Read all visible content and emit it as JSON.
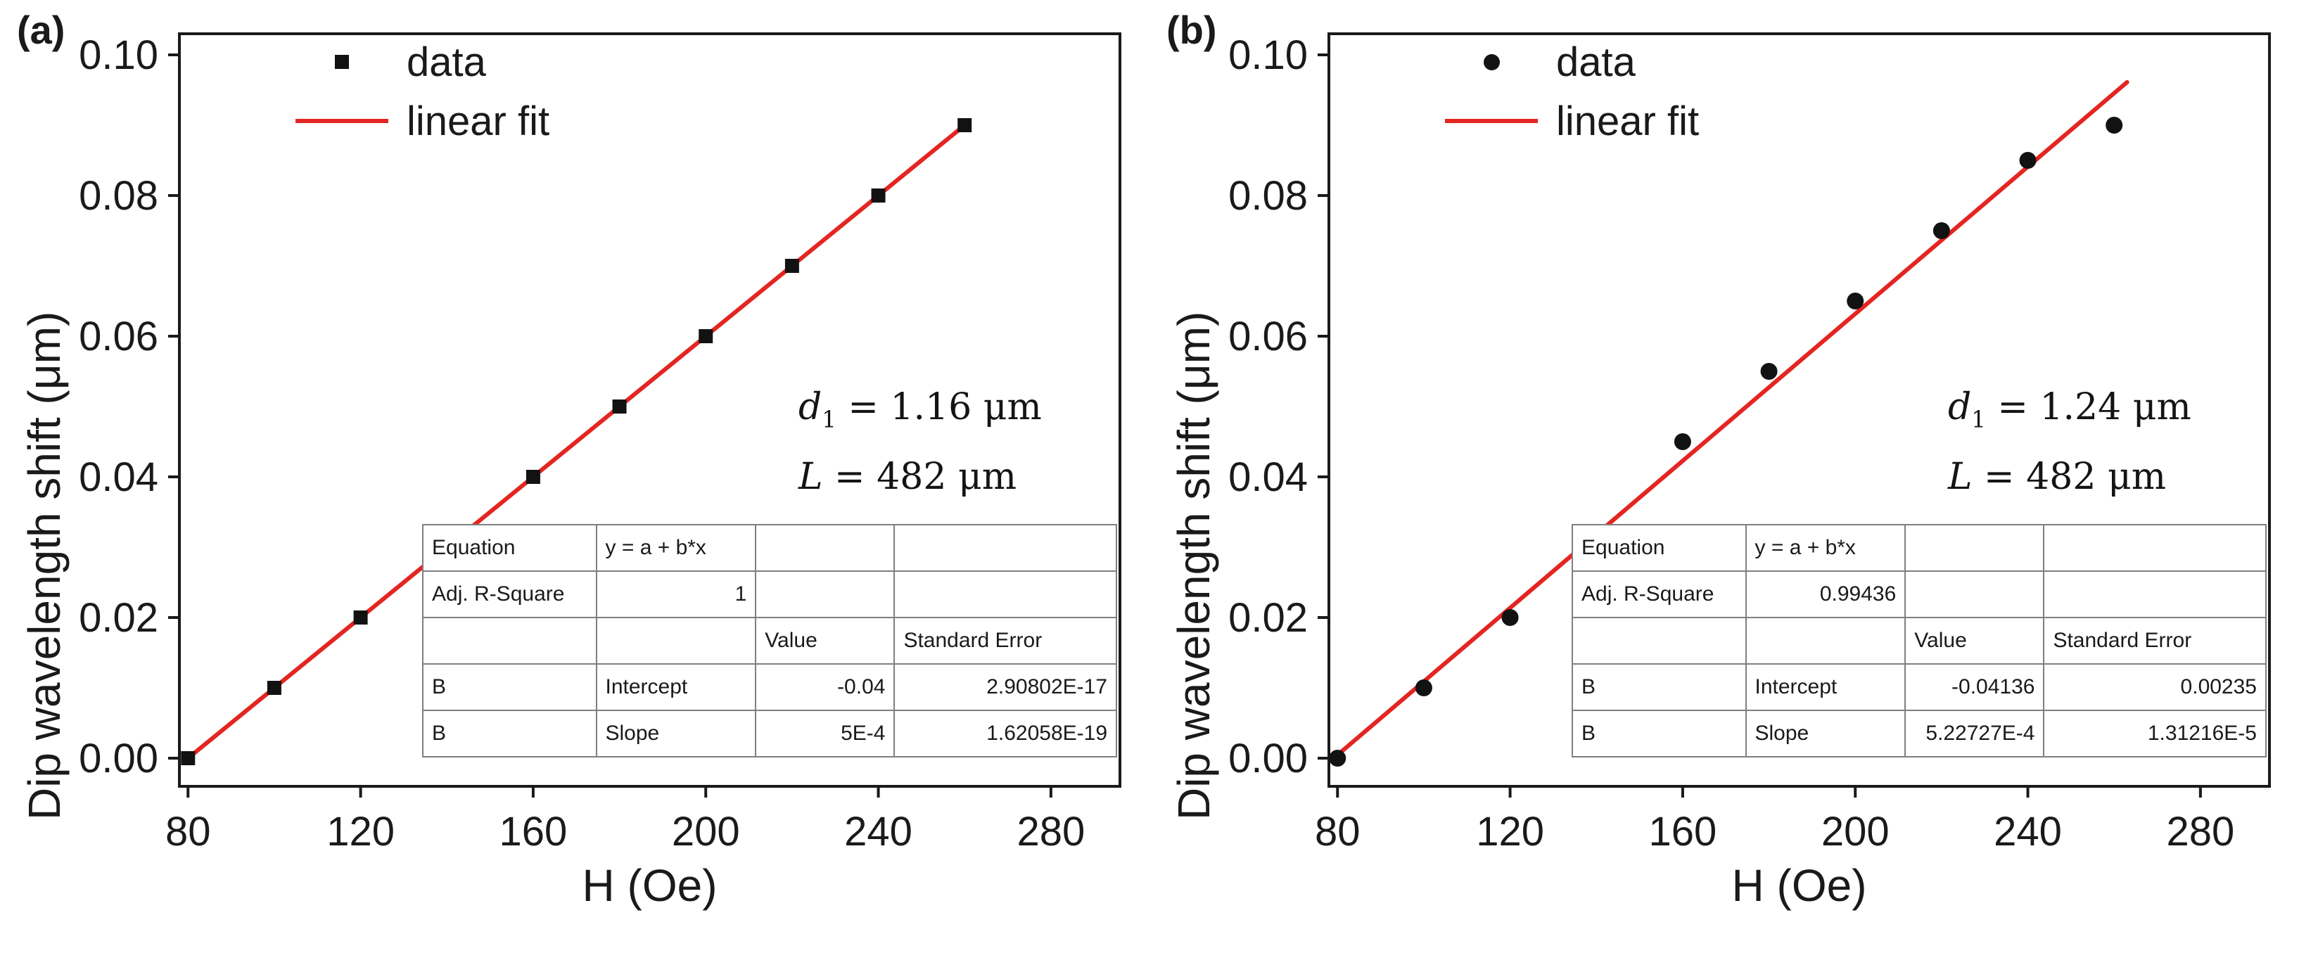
{
  "colors": {
    "fit_line": "#e42521",
    "marker": "#121212",
    "axis": "#1a1a1a",
    "table_border": "#7f7f7f"
  },
  "chart_data": [
    {
      "type": "scatter",
      "panel_label": "(a)",
      "xlabel": "H (Oe)",
      "ylabel": "Dip wavelength shift (μm)",
      "xlim": [
        78,
        296
      ],
      "ylim": [
        -0.004,
        0.103
      ],
      "xticks": [
        80,
        120,
        160,
        200,
        240,
        280
      ],
      "xtick_labels": [
        "80",
        "120",
        "160",
        "200",
        "240",
        "280"
      ],
      "yticks": [
        0.0,
        0.02,
        0.04,
        0.06,
        0.08,
        0.1
      ],
      "ytick_labels": [
        "0.00",
        "0.02",
        "0.04",
        "0.06",
        "0.08",
        "0.10"
      ],
      "marker": "square",
      "points": {
        "x": [
          80,
          100,
          120,
          140,
          160,
          180,
          200,
          220,
          240,
          260
        ],
        "y": [
          0.0,
          0.01,
          0.02,
          0.03,
          0.04,
          0.05,
          0.06,
          0.07,
          0.08,
          0.09
        ]
      },
      "fit": {
        "intercept": -0.04,
        "slope": 0.0005,
        "x_range": [
          80,
          260
        ]
      },
      "legend": {
        "data_label": "data",
        "fit_label": "linear fit"
      },
      "annotation": {
        "d": {
          "sym": "d",
          "sub": "1",
          "rest": " = 1.16 μm"
        },
        "L": {
          "sym": "L",
          "rest": " = 482 μm"
        }
      },
      "stats": {
        "rows": [
          [
            "Equation",
            "y = a + b*x",
            "",
            ""
          ],
          [
            "Adj. R-Square",
            "1",
            "",
            ""
          ],
          [
            "",
            "",
            "Value",
            "Standard Error"
          ],
          [
            "B",
            "Intercept",
            "-0.04",
            "2.90802E-17"
          ],
          [
            "B",
            "Slope",
            "5E-4",
            "1.62058E-19"
          ]
        ]
      }
    },
    {
      "type": "scatter",
      "panel_label": "(b)",
      "xlabel": "H (Oe)",
      "ylabel": "Dip wavelength shift (μm)",
      "xlim": [
        78,
        296
      ],
      "ylim": [
        -0.004,
        0.103
      ],
      "xticks": [
        80,
        120,
        160,
        200,
        240,
        280
      ],
      "xtick_labels": [
        "80",
        "120",
        "160",
        "200",
        "240",
        "280"
      ],
      "yticks": [
        0.0,
        0.02,
        0.04,
        0.06,
        0.08,
        0.1
      ],
      "ytick_labels": [
        "0.00",
        "0.02",
        "0.04",
        "0.06",
        "0.08",
        "0.10"
      ],
      "marker": "circle",
      "points": {
        "x": [
          80,
          100,
          120,
          140,
          160,
          180,
          200,
          220,
          240,
          260
        ],
        "y": [
          0.0,
          0.01,
          0.02,
          0.03,
          0.045,
          0.055,
          0.065,
          0.075,
          0.085,
          0.09
        ]
      },
      "fit": {
        "intercept": -0.04136,
        "slope": 0.000522727,
        "x_range": [
          80,
          263
        ]
      },
      "legend": {
        "data_label": "data",
        "fit_label": "linear fit"
      },
      "annotation": {
        "d": {
          "sym": "d",
          "sub": "1",
          "rest": " = 1.24 μm"
        },
        "L": {
          "sym": "L",
          "rest": " = 482 μm"
        }
      },
      "stats": {
        "rows": [
          [
            "Equation",
            "y = a + b*x",
            "",
            ""
          ],
          [
            "Adj. R-Square",
            "0.99436",
            "",
            ""
          ],
          [
            "",
            "",
            "Value",
            "Standard Error"
          ],
          [
            "B",
            "Intercept",
            "-0.04136",
            "0.00235"
          ],
          [
            "B",
            "Slope",
            "5.22727E-4",
            "1.31216E-5"
          ]
        ]
      }
    }
  ]
}
